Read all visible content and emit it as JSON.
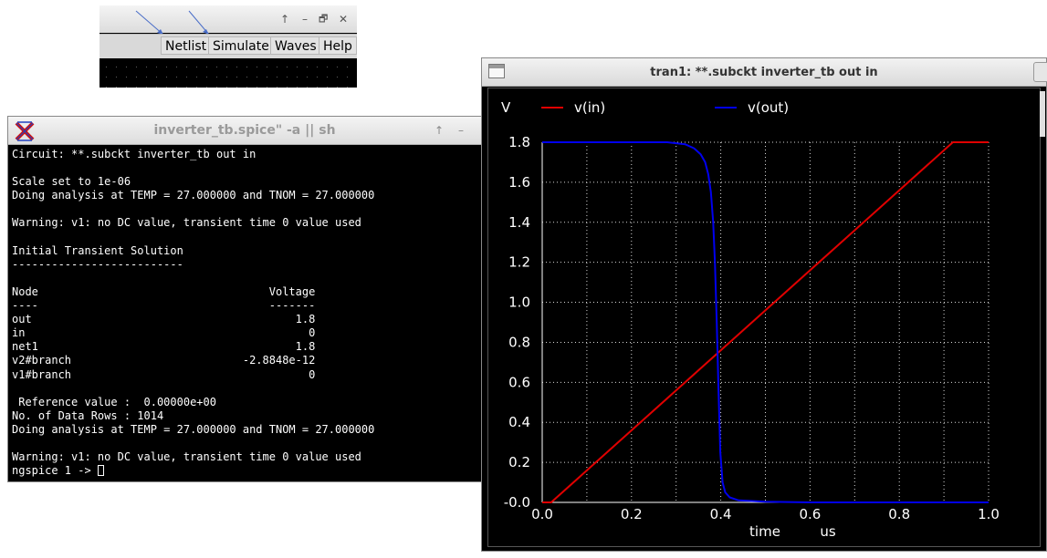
{
  "menu_window": {
    "controls": {
      "up": "↑",
      "minimize": "–",
      "maximize": "🗗",
      "close": "✕"
    },
    "menu": [
      "Netlist",
      "Simulate",
      "Waves",
      "Help"
    ]
  },
  "terminal": {
    "title": "inverter_tb.spice\" -a || sh",
    "controls": {
      "up": "↑",
      "minimize": "–"
    },
    "lines": [
      "Circuit: **.subckt inverter_tb out in",
      "",
      "Scale set to 1e-06",
      "Doing analysis at TEMP = 27.000000 and TNOM = 27.000000",
      "",
      "Warning: v1: no DC value, transient time 0 value used",
      "",
      "Initial Transient Solution",
      "--------------------------",
      "",
      "Node                                   Voltage",
      "----                                   -------",
      "out                                        1.8",
      "in                                           0",
      "net1                                       1.8",
      "v2#branch                          -2.8848e-12",
      "v1#branch                                    0",
      "",
      " Reference value :  0.00000e+00",
      "No. of Data Rows : 1014",
      "Doing analysis at TEMP = 27.000000 and TNOM = 27.000000",
      "",
      "Warning: v1: no DC value, transient time 0 value used"
    ],
    "prompt": "ngspice 1 -> "
  },
  "wave_window": {
    "title": "tran1: **.subckt inverter_tb out in"
  },
  "chart_data": {
    "type": "line",
    "y_unit_label": "V",
    "xlabel": "time",
    "x_unit_label": "us",
    "xlim": [
      0.0,
      1.0
    ],
    "ylim": [
      0.0,
      1.8
    ],
    "x_ticks": [
      "0.0",
      "0.2",
      "0.4",
      "0.6",
      "0.8",
      "1.0"
    ],
    "y_ticks": [
      "-0.0",
      "0.2",
      "0.4",
      "0.6",
      "0.8",
      "1.0",
      "1.2",
      "1.4",
      "1.6",
      "1.8"
    ],
    "grid": true,
    "legend_position": "top",
    "series": [
      {
        "name": "v(in)",
        "color": "#e00000",
        "x": [
          0.0,
          0.02,
          0.92,
          1.0
        ],
        "y": [
          0.0,
          0.0,
          1.8,
          1.8
        ]
      },
      {
        "name": "v(out)",
        "color": "#0000ee",
        "x": [
          0.0,
          0.28,
          0.32,
          0.34,
          0.355,
          0.365,
          0.372,
          0.378,
          0.383,
          0.387,
          0.391,
          0.395,
          0.399,
          0.404,
          0.41,
          0.42,
          0.44,
          0.5,
          0.6,
          1.0
        ],
        "y": [
          1.8,
          1.8,
          1.79,
          1.77,
          1.74,
          1.7,
          1.64,
          1.55,
          1.4,
          1.2,
          0.9,
          0.55,
          0.25,
          0.1,
          0.05,
          0.025,
          0.01,
          0.003,
          0.0,
          0.0
        ]
      }
    ]
  }
}
